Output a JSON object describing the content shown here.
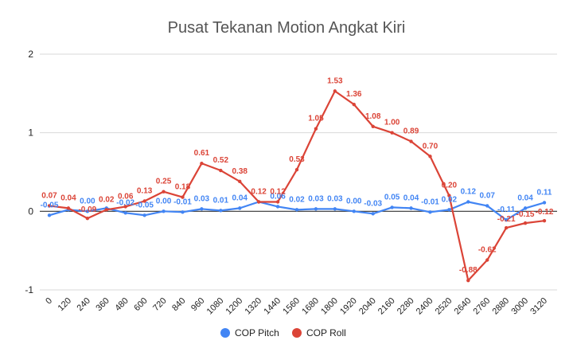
{
  "chart_data": {
    "type": "line",
    "title": "Pusat Tekanan Motion Angkat Kiri",
    "xlabel": "",
    "ylabel": "",
    "ylim": [
      -1,
      2
    ],
    "yticks": [
      "2",
      "1",
      "0",
      "-1"
    ],
    "ytick_values": [
      2,
      1,
      0,
      -1
    ],
    "grid": true,
    "legend_position": "bottom",
    "categories": [
      "0",
      "120",
      "240",
      "360",
      "480",
      "600",
      "720",
      "840",
      "960",
      "1080",
      "1200",
      "1320",
      "1440",
      "1560",
      "1680",
      "1800",
      "1920",
      "2040",
      "2160",
      "2280",
      "2400",
      "2520",
      "2640",
      "2760",
      "2880",
      "3000",
      "3120"
    ],
    "series": [
      {
        "name": "COP Pitch",
        "color": "#4285f4",
        "values": [
          -0.05,
          0.02,
          0.0,
          0.04,
          -0.02,
          -0.05,
          0.0,
          -0.01,
          0.03,
          0.01,
          0.04,
          0.12,
          0.06,
          0.02,
          0.03,
          0.03,
          0.0,
          -0.03,
          0.05,
          0.04,
          -0.01,
          0.02,
          0.12,
          0.07,
          -0.11,
          0.04,
          0.11
        ],
        "labels": [
          "-0.05",
          "",
          "0.00",
          "",
          "-0.02",
          "-0.05",
          "0.00",
          "-0.01",
          "0.03",
          "0.01",
          "0.04",
          "",
          "0.06",
          "0.02",
          "0.03",
          "0.03",
          "0.00",
          "-0.03",
          "0.05",
          "0.04",
          "-0.01",
          "0.02",
          "0.12",
          "0.07",
          "-0.11",
          "0.04",
          "0.11"
        ]
      },
      {
        "name": "COP Roll",
        "color": "#db4437",
        "values": [
          0.07,
          0.04,
          -0.09,
          0.02,
          0.06,
          0.13,
          0.25,
          0.18,
          0.61,
          0.52,
          0.38,
          0.12,
          0.12,
          0.53,
          1.05,
          1.53,
          1.36,
          1.08,
          1.0,
          0.89,
          0.7,
          0.2,
          -0.88,
          -0.62,
          -0.21,
          -0.15,
          -0.12
        ],
        "labels": [
          "0.07",
          "0.04",
          "-0.09",
          "0.02",
          "0.06",
          "0.13",
          "0.25",
          "0.18",
          "0.61",
          "0.52",
          "0.38",
          "0.12",
          "0.12",
          "0.53",
          "1.05",
          "1.53",
          "1.36",
          "1.08",
          "1.00",
          "0.89",
          "0.70",
          "0.20",
          "-0.88",
          "-0.62",
          "-0.21",
          "-0.15",
          "-0.12"
        ]
      }
    ]
  }
}
